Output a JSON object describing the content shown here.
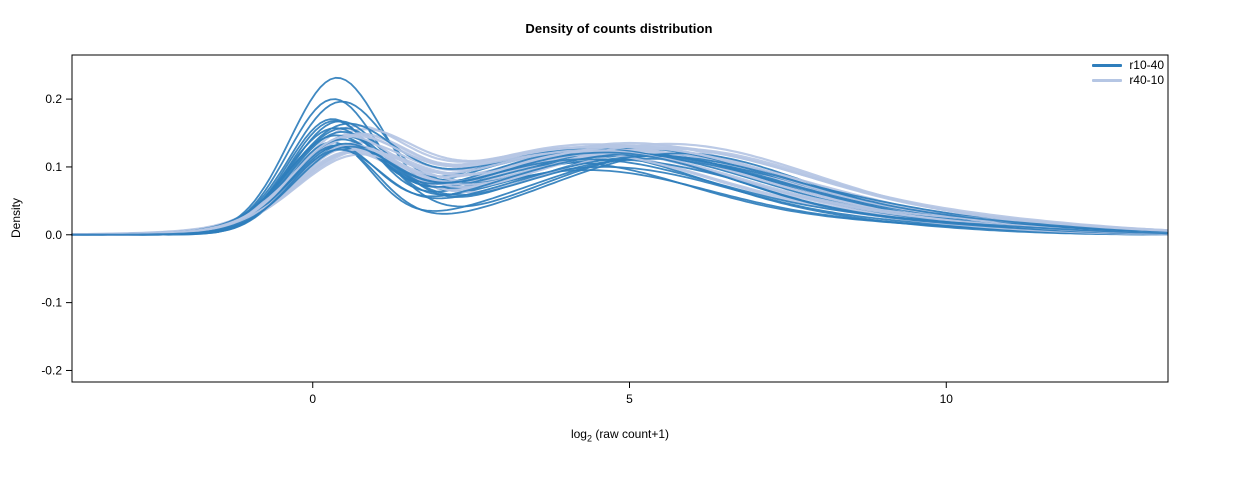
{
  "chart_data": {
    "type": "line",
    "title": "Density of counts distribution",
    "xlabel": "log2 (raw count+1)",
    "xlabel_parts": {
      "base": "log",
      "sub": "2",
      "rest": " (raw count+1)"
    },
    "ylabel": "Density",
    "xlim": [
      -3.8,
      13.5
    ],
    "ylim": [
      -0.217,
      0.265
    ],
    "x_ticks": [
      {
        "v": 0,
        "label": "0"
      },
      {
        "v": 5,
        "label": "5"
      },
      {
        "v": 10,
        "label": "10"
      }
    ],
    "y_ticks": [
      {
        "v": -0.2,
        "label": "-0.2"
      },
      {
        "v": -0.1,
        "label": "-0.1"
      },
      {
        "v": 0.0,
        "label": "0.0"
      },
      {
        "v": 0.1,
        "label": "0.1"
      },
      {
        "v": 0.2,
        "label": "0.2"
      }
    ],
    "grid": false,
    "legend_position": "top-right",
    "curve_model": "density(x) = A1*G(x;m1,s1) + A2*G(x;m2,s2) + A3*G(x;m3,s3); each curve encoded as [A1,m1,s1,A2,m2,s2,A3,m3,s3]",
    "series": [
      {
        "name": "r10-40",
        "color": "#2f7ebc",
        "curves": [
          [
            0.215,
            0.35,
            0.72,
            0.095,
            4.3,
            2.1,
            0.012,
            9.0,
            1.8
          ],
          [
            0.185,
            0.3,
            0.7,
            0.1,
            4.6,
            2.2,
            0.01,
            9.5,
            1.5
          ],
          [
            0.175,
            0.4,
            0.75,
            0.105,
            4.0,
            2.0,
            0.015,
            8.5,
            2.0
          ],
          [
            0.15,
            0.3,
            0.68,
            0.12,
            4.8,
            2.3,
            0.01,
            9.0,
            1.6
          ],
          [
            0.148,
            0.45,
            0.8,
            0.118,
            5.2,
            2.1,
            0.012,
            9.5,
            1.8
          ],
          [
            0.142,
            0.25,
            0.65,
            0.125,
            4.4,
            2.4,
            0.008,
            10.0,
            1.5
          ],
          [
            0.14,
            0.5,
            0.78,
            0.115,
            5.5,
            2.0,
            0.015,
            9.2,
            2.1
          ],
          [
            0.138,
            0.35,
            0.7,
            0.122,
            4.1,
            2.2,
            0.01,
            8.8,
            1.7
          ],
          [
            0.135,
            0.3,
            0.72,
            0.128,
            5.0,
            2.5,
            0.012,
            10.5,
            1.6
          ],
          [
            0.132,
            0.4,
            0.76,
            0.11,
            4.7,
            2.3,
            0.018,
            9.8,
            2.0
          ],
          [
            0.13,
            0.28,
            0.66,
            0.118,
            5.6,
            2.2,
            0.01,
            10.2,
            1.4
          ],
          [
            0.128,
            0.45,
            0.8,
            0.125,
            4.3,
            2.4,
            0.014,
            9.0,
            1.9
          ],
          [
            0.125,
            0.35,
            0.7,
            0.12,
            5.8,
            2.1,
            0.012,
            10.8,
            1.5
          ],
          [
            0.122,
            0.3,
            0.74,
            0.115,
            4.9,
            2.6,
            0.016,
            9.4,
            2.2
          ],
          [
            0.12,
            0.5,
            0.82,
            0.112,
            5.3,
            2.3,
            0.01,
            10.0,
            1.6
          ],
          [
            0.118,
            0.38,
            0.72,
            0.126,
            4.5,
            2.2,
            0.012,
            9.6,
            1.8
          ],
          [
            0.115,
            0.32,
            0.68,
            0.119,
            5.1,
            2.4,
            0.014,
            10.4,
            1.7
          ],
          [
            0.112,
            0.42,
            0.78,
            0.108,
            4.2,
            2.1,
            0.02,
            8.6,
            2.3
          ],
          [
            0.11,
            0.36,
            0.71,
            0.116,
            5.4,
            2.5,
            0.01,
            11.0,
            1.5
          ],
          [
            0.108,
            0.48,
            0.79,
            0.121,
            4.6,
            2.2,
            0.013,
            9.9,
            1.9
          ]
        ]
      },
      {
        "name": "r40-10",
        "color": "#b5c6e4",
        "curves": [
          [
            0.118,
            0.55,
            0.85,
            0.128,
            4.2,
            2.4,
            0.015,
            9.0,
            2.0
          ],
          [
            0.115,
            0.6,
            0.9,
            0.132,
            4.8,
            2.5,
            0.012,
            9.6,
            1.8
          ],
          [
            0.112,
            0.5,
            0.82,
            0.125,
            5.2,
            2.3,
            0.018,
            10.0,
            2.1
          ],
          [
            0.11,
            0.65,
            0.88,
            0.13,
            4.5,
            2.6,
            0.01,
            9.2,
            1.6
          ],
          [
            0.108,
            0.45,
            0.8,
            0.135,
            5.0,
            2.4,
            0.014,
            10.4,
            1.9
          ],
          [
            0.105,
            0.58,
            0.86,
            0.122,
            4.3,
            2.2,
            0.02,
            8.8,
            2.2
          ],
          [
            0.103,
            0.52,
            0.84,
            0.128,
            5.5,
            2.5,
            0.012,
            10.8,
            1.7
          ],
          [
            0.1,
            0.62,
            0.9,
            0.124,
            4.7,
            2.3,
            0.016,
            9.4,
            2.0
          ],
          [
            0.098,
            0.48,
            0.8,
            0.131,
            5.3,
            2.6,
            0.011,
            10.1,
            1.6
          ],
          [
            0.112,
            0.55,
            0.85,
            0.12,
            4.0,
            2.2,
            0.022,
            8.5,
            2.4
          ],
          [
            0.109,
            0.6,
            0.88,
            0.127,
            5.7,
            2.4,
            0.013,
            11.0,
            1.8
          ],
          [
            0.106,
            0.5,
            0.83,
            0.133,
            4.4,
            2.5,
            0.015,
            9.8,
            2.0
          ],
          [
            0.104,
            0.66,
            0.92,
            0.123,
            5.1,
            2.3,
            0.017,
            10.6,
            2.1
          ],
          [
            0.101,
            0.47,
            0.81,
            0.129,
            4.9,
            2.6,
            0.012,
            9.1,
            1.7
          ],
          [
            0.114,
            0.57,
            0.87,
            0.126,
            5.4,
            2.4,
            0.019,
            10.2,
            2.2
          ],
          [
            0.107,
            0.53,
            0.84,
            0.121,
            4.1,
            2.3,
            0.014,
            8.9,
            1.9
          ],
          [
            0.099,
            0.63,
            0.91,
            0.134,
            5.6,
            2.5,
            0.01,
            11.2,
            1.6
          ],
          [
            0.111,
            0.49,
            0.82,
            0.119,
            4.6,
            2.2,
            0.021,
            9.7,
            2.3
          ],
          [
            0.097,
            0.59,
            0.89,
            0.13,
            5.0,
            2.5,
            0.013,
            10.9,
            1.8
          ],
          [
            0.113,
            0.44,
            0.79,
            0.124,
            4.35,
            2.35,
            0.016,
            9.3,
            2.0
          ]
        ]
      }
    ]
  }
}
